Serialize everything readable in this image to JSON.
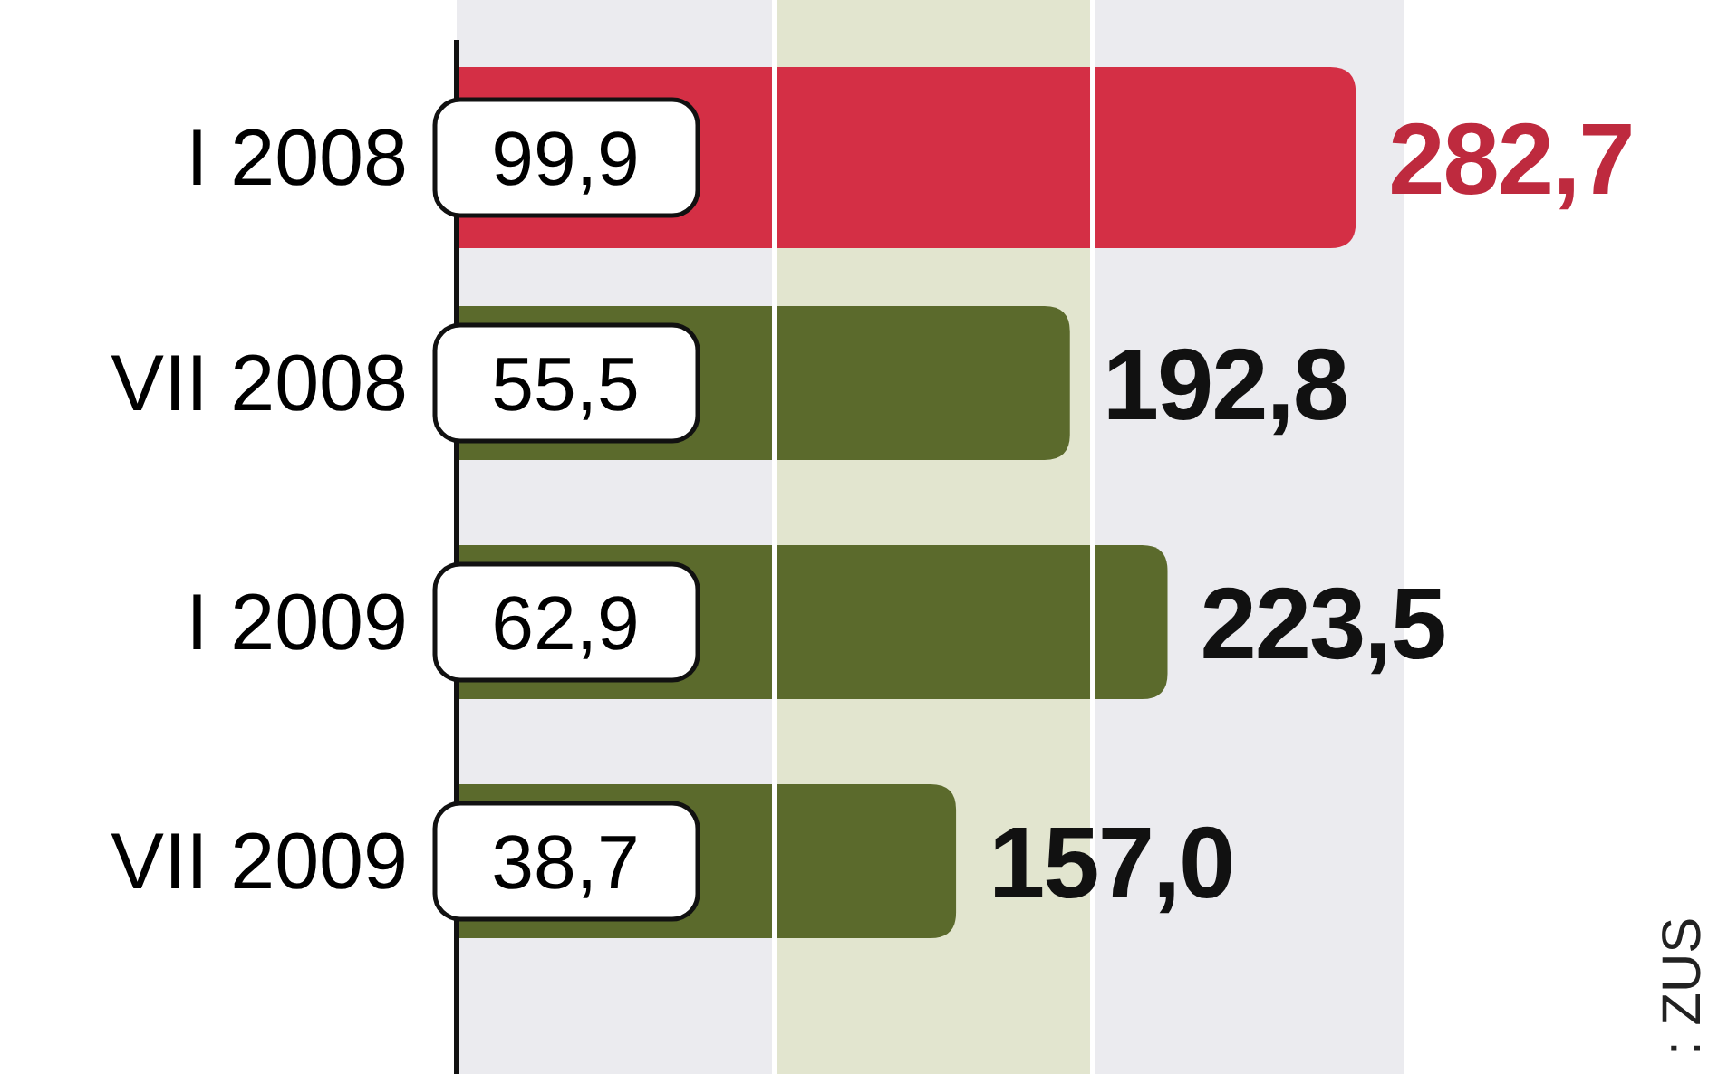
{
  "chart_data": {
    "type": "bar",
    "orientation": "horizontal",
    "categories": [
      "I 2008",
      "VII 2008",
      "I 2009",
      "VII 2009"
    ],
    "values": [
      282.7,
      192.8,
      223.5,
      157.0
    ],
    "value_labels": [
      "282,7",
      "192,8",
      "223,5",
      "157,0"
    ],
    "colors": [
      "#d42f45",
      "#5b6a2c",
      "#5b6a2c",
      "#5b6a2c"
    ],
    "xlim": [
      0,
      298
    ],
    "xticks": [
      {
        "value": 100,
        "label": null
      },
      {
        "value": 200,
        "label": null
      }
    ],
    "bands": [
      {
        "axis": "x",
        "from": 100,
        "to": 200,
        "color": "#e2e5cf"
      }
    ],
    "annotations": [
      "99,9",
      "55,5",
      "62,9",
      "38,7",
      ": ZUS"
    ]
  }
}
